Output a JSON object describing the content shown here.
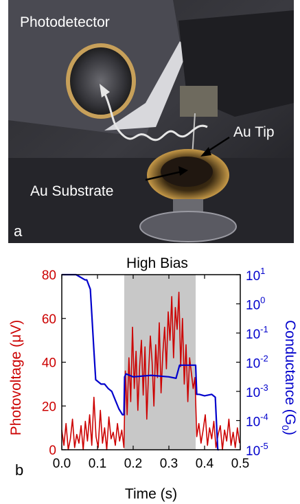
{
  "photo": {
    "labels": {
      "photodetector": "Photodetector",
      "au_tip": "Au Tip",
      "au_substrate": "Au Substrate",
      "panel": "a"
    }
  },
  "chart_panel": {
    "panel": "b"
  },
  "chart_data": {
    "type": "line",
    "title": "High Bias",
    "xlabel": "Time (s)",
    "ylabel": "Photovoltage (μV)",
    "y2label": "Conductance (G",
    "y2label_sub": "0",
    "y2label_end": ")",
    "xlim": [
      0.0,
      0.5
    ],
    "ylim": [
      0,
      80
    ],
    "y2lim_log10": [
      -5,
      1
    ],
    "x_ticks": [
      "0.0",
      "0.1",
      "0.2",
      "0.3",
      "0.4",
      "0.5"
    ],
    "y_ticks": [
      "0",
      "20",
      "40",
      "60",
      "80"
    ],
    "y2_ticks": [
      {
        "base": "10",
        "exp": "1"
      },
      {
        "base": "10",
        "exp": "0"
      },
      {
        "base": "10",
        "exp": "-1"
      },
      {
        "base": "10",
        "exp": "-2"
      },
      {
        "base": "10",
        "exp": "-3"
      },
      {
        "base": "10",
        "exp": "-4"
      },
      {
        "base": "10",
        "exp": "-5"
      }
    ],
    "shaded_region": [
      0.175,
      0.375
    ],
    "colors": {
      "photovoltage": "#cc0000",
      "conductance": "#0000cc",
      "shade": "#c8c8c8",
      "axis_left": "#cc0000",
      "axis_right": "#0000cc"
    },
    "series": [
      {
        "axis": "left",
        "x": [
          0.0,
          0.006,
          0.012,
          0.018,
          0.024,
          0.03,
          0.036,
          0.042,
          0.048,
          0.054,
          0.06,
          0.066,
          0.072,
          0.078,
          0.084,
          0.09,
          0.096,
          0.102,
          0.108,
          0.114,
          0.12,
          0.126,
          0.132,
          0.138,
          0.144,
          0.15,
          0.156,
          0.162,
          0.168,
          0.174,
          0.178,
          0.183,
          0.188,
          0.193,
          0.198,
          0.203,
          0.208,
          0.213,
          0.218,
          0.223,
          0.228,
          0.233,
          0.238,
          0.243,
          0.248,
          0.253,
          0.258,
          0.263,
          0.268,
          0.273,
          0.278,
          0.283,
          0.288,
          0.293,
          0.298,
          0.303,
          0.308,
          0.313,
          0.318,
          0.323,
          0.328,
          0.333,
          0.338,
          0.343,
          0.348,
          0.353,
          0.358,
          0.363,
          0.368,
          0.373,
          0.378,
          0.384,
          0.39,
          0.396,
          0.402,
          0.408,
          0.414,
          0.42,
          0.426,
          0.432,
          0.438,
          0.444,
          0.45,
          0.456,
          0.462,
          0.468,
          0.474,
          0.48,
          0.486,
          0.492,
          0.498
        ],
        "y": [
          9,
          2,
          12,
          0,
          5,
          14,
          1,
          7,
          3,
          11,
          0,
          13,
          4,
          16,
          2,
          24,
          6,
          1,
          18,
          3,
          10,
          0,
          15,
          5,
          8,
          2,
          12,
          4,
          9,
          1,
          36,
          16,
          42,
          22,
          56,
          28,
          45,
          18,
          38,
          50,
          25,
          47,
          14,
          35,
          52,
          40,
          20,
          48,
          33,
          58,
          26,
          44,
          56,
          37,
          63,
          50,
          70,
          42,
          65,
          55,
          72,
          38,
          60,
          30,
          48,
          22,
          42,
          35,
          28,
          33,
          6,
          12,
          3,
          9,
          16,
          2,
          10,
          5,
          13,
          1,
          7,
          11,
          0,
          9,
          4,
          14,
          2,
          8,
          1,
          10,
          3
        ]
      },
      {
        "axis": "right",
        "x": [
          0.0,
          0.04,
          0.05,
          0.065,
          0.07,
          0.08,
          0.09,
          0.095,
          0.11,
          0.12,
          0.13,
          0.14,
          0.15,
          0.16,
          0.17,
          0.174,
          0.176,
          0.18,
          0.2,
          0.25,
          0.3,
          0.32,
          0.33,
          0.375,
          0.378,
          0.385,
          0.4,
          0.42,
          0.43,
          0.437,
          0.44
        ],
        "y": [
          1.0,
          1.0,
          0.93,
          0.82,
          0.82,
          0.5,
          -1.6,
          -2.6,
          -2.75,
          -2.75,
          -2.9,
          -3.0,
          -3.3,
          -3.6,
          -3.8,
          -3.8,
          -2.5,
          -2.4,
          -2.5,
          -2.45,
          -2.5,
          -2.55,
          -2.1,
          -2.1,
          -3.1,
          -3.1,
          -3.15,
          -3.1,
          -3.2,
          -5.0,
          -5.0
        ]
      }
    ]
  }
}
